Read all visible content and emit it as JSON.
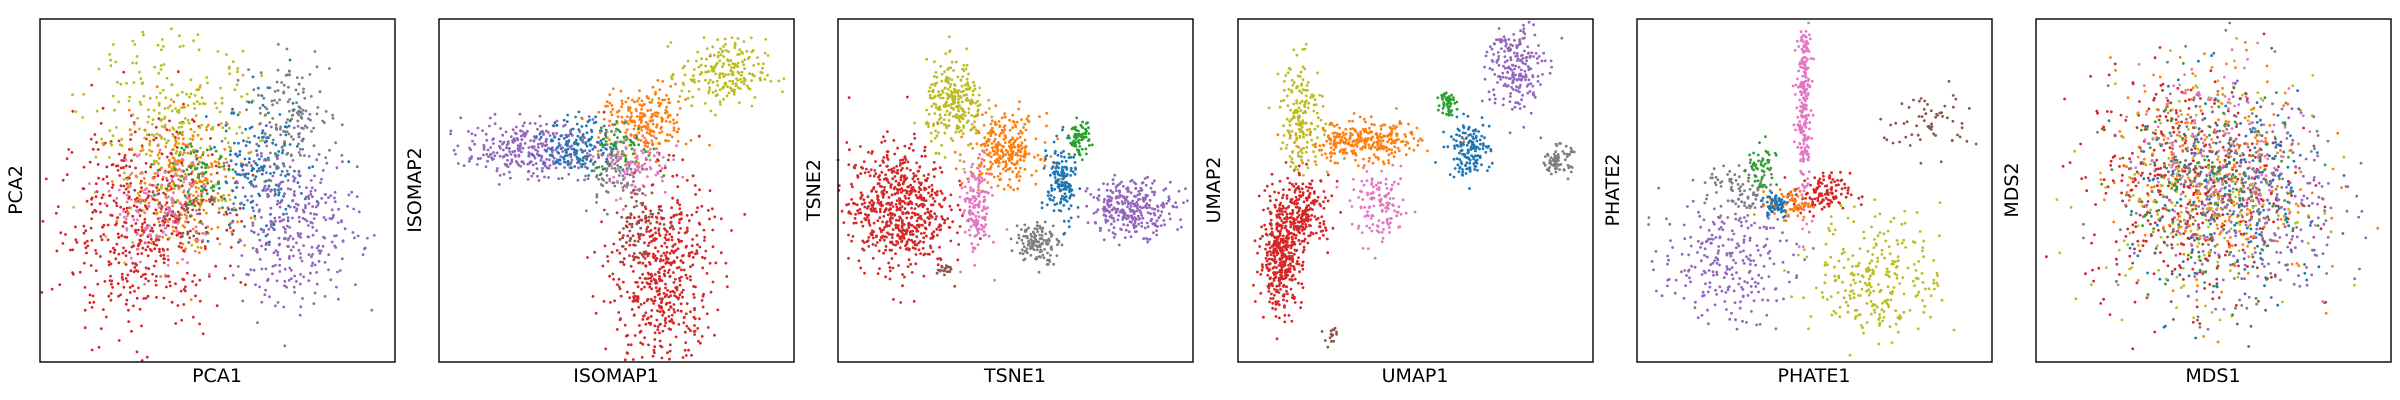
{
  "palette": {
    "blue": "#1f77b4",
    "orange": "#ff7f0e",
    "green": "#2ca02c",
    "red": "#d62728",
    "purple": "#9467bd",
    "brown": "#8c564b",
    "pink": "#e377c2",
    "gray": "#7f7f7f",
    "olive": "#bcbd22"
  },
  "chart_data": [
    {
      "type": "scatter",
      "xlabel": "PCA1",
      "ylabel": "PCA2",
      "xlim": [
        0,
        1
      ],
      "ylim": [
        0,
        1
      ],
      "grid": false,
      "ticks": false,
      "clusters": [
        {
          "color": "red",
          "x": 0.28,
          "y": 0.4,
          "sx": 0.11,
          "sy": 0.15,
          "n": 520
        },
        {
          "color": "olive",
          "x": 0.38,
          "y": 0.68,
          "sx": 0.12,
          "sy": 0.13,
          "n": 300
        },
        {
          "color": "orange",
          "x": 0.42,
          "y": 0.52,
          "sx": 0.08,
          "sy": 0.1,
          "n": 220
        },
        {
          "color": "pink",
          "x": 0.35,
          "y": 0.45,
          "sx": 0.07,
          "sy": 0.08,
          "n": 140
        },
        {
          "color": "blue",
          "x": 0.62,
          "y": 0.55,
          "sx": 0.07,
          "sy": 0.1,
          "n": 200
        },
        {
          "color": "purple",
          "x": 0.72,
          "y": 0.4,
          "sx": 0.09,
          "sy": 0.12,
          "n": 340
        },
        {
          "color": "gray",
          "x": 0.7,
          "y": 0.72,
          "sx": 0.06,
          "sy": 0.08,
          "n": 130
        },
        {
          "color": "green",
          "x": 0.45,
          "y": 0.55,
          "sx": 0.05,
          "sy": 0.05,
          "n": 70
        },
        {
          "color": "brown",
          "x": 0.4,
          "y": 0.45,
          "sx": 0.05,
          "sy": 0.05,
          "n": 50
        }
      ]
    },
    {
      "type": "scatter",
      "xlabel": "ISOMAP1",
      "ylabel": "ISOMAP2",
      "xlim": [
        0,
        1
      ],
      "ylim": [
        0,
        1
      ],
      "grid": false,
      "ticks": false,
      "clusters": [
        {
          "color": "red",
          "x": 0.63,
          "y": 0.25,
          "sx": 0.07,
          "sy": 0.15,
          "n": 560
        },
        {
          "color": "purple",
          "x": 0.25,
          "y": 0.62,
          "sx": 0.09,
          "sy": 0.04,
          "n": 300
        },
        {
          "color": "blue",
          "x": 0.4,
          "y": 0.63,
          "sx": 0.05,
          "sy": 0.04,
          "n": 160
        },
        {
          "color": "orange",
          "x": 0.58,
          "y": 0.7,
          "sx": 0.06,
          "sy": 0.05,
          "n": 220
        },
        {
          "color": "olive",
          "x": 0.8,
          "y": 0.84,
          "sx": 0.06,
          "sy": 0.05,
          "n": 210
        },
        {
          "color": "gray",
          "x": 0.5,
          "y": 0.55,
          "sx": 0.05,
          "sy": 0.05,
          "n": 90
        },
        {
          "color": "green",
          "x": 0.52,
          "y": 0.63,
          "sx": 0.04,
          "sy": 0.04,
          "n": 60
        },
        {
          "color": "pink",
          "x": 0.55,
          "y": 0.58,
          "sx": 0.05,
          "sy": 0.05,
          "n": 90
        },
        {
          "color": "brown",
          "x": 0.55,
          "y": 0.4,
          "sx": 0.04,
          "sy": 0.06,
          "n": 60
        }
      ]
    },
    {
      "type": "scatter",
      "xlabel": "TSNE1",
      "ylabel": "TSNE2",
      "xlim": [
        0,
        1
      ],
      "ylim": [
        0,
        1
      ],
      "grid": false,
      "ticks": false,
      "clusters": [
        {
          "color": "red",
          "x": 0.17,
          "y": 0.45,
          "sx": 0.07,
          "sy": 0.09,
          "n": 650
        },
        {
          "color": "olive",
          "x": 0.33,
          "y": 0.75,
          "sx": 0.04,
          "sy": 0.06,
          "n": 260
        },
        {
          "color": "orange",
          "x": 0.47,
          "y": 0.62,
          "sx": 0.05,
          "sy": 0.05,
          "n": 280
        },
        {
          "color": "pink",
          "x": 0.39,
          "y": 0.45,
          "sx": 0.02,
          "sy": 0.07,
          "n": 150
        },
        {
          "color": "blue",
          "x": 0.63,
          "y": 0.52,
          "sx": 0.02,
          "sy": 0.06,
          "n": 160
        },
        {
          "color": "green",
          "x": 0.68,
          "y": 0.65,
          "sx": 0.015,
          "sy": 0.025,
          "n": 80
        },
        {
          "color": "purple",
          "x": 0.83,
          "y": 0.45,
          "sx": 0.06,
          "sy": 0.04,
          "n": 300
        },
        {
          "color": "gray",
          "x": 0.56,
          "y": 0.35,
          "sx": 0.03,
          "sy": 0.03,
          "n": 130
        },
        {
          "color": "brown",
          "x": 0.3,
          "y": 0.27,
          "sx": 0.01,
          "sy": 0.01,
          "n": 20
        }
      ]
    },
    {
      "type": "scatter",
      "xlabel": "UMAP1",
      "ylabel": "UMAP2",
      "xlim": [
        0,
        1
      ],
      "ylim": [
        0,
        1
      ],
      "grid": false,
      "ticks": false,
      "clusters": [
        {
          "color": "red",
          "x": 0.12,
          "y": 0.3,
          "sx": 0.03,
          "sy": 0.07,
          "n": 380
        },
        {
          "color": "red",
          "x": 0.18,
          "y": 0.44,
          "sx": 0.04,
          "sy": 0.05,
          "n": 240
        },
        {
          "color": "orange",
          "x": 0.35,
          "y": 0.64,
          "sx": 0.08,
          "sy": 0.03,
          "n": 300
        },
        {
          "color": "olive",
          "x": 0.18,
          "y": 0.72,
          "sx": 0.03,
          "sy": 0.08,
          "n": 180
        },
        {
          "color": "pink",
          "x": 0.4,
          "y": 0.45,
          "sx": 0.04,
          "sy": 0.05,
          "n": 130
        },
        {
          "color": "blue",
          "x": 0.65,
          "y": 0.62,
          "sx": 0.03,
          "sy": 0.04,
          "n": 150
        },
        {
          "color": "green",
          "x": 0.59,
          "y": 0.76,
          "sx": 0.01,
          "sy": 0.02,
          "n": 50
        },
        {
          "color": "purple",
          "x": 0.78,
          "y": 0.86,
          "sx": 0.04,
          "sy": 0.07,
          "n": 220
        },
        {
          "color": "gray",
          "x": 0.9,
          "y": 0.59,
          "sx": 0.02,
          "sy": 0.02,
          "n": 80
        },
        {
          "color": "brown",
          "x": 0.26,
          "y": 0.08,
          "sx": 0.01,
          "sy": 0.015,
          "n": 15
        }
      ]
    },
    {
      "type": "scatter",
      "xlabel": "PHATE1",
      "ylabel": "PHATE2",
      "xlim": [
        0,
        1
      ],
      "ylim": [
        0,
        1
      ],
      "grid": false,
      "ticks": false,
      "clusters": [
        {
          "color": "pink",
          "x": 0.47,
          "y": 0.75,
          "sx": 0.01,
          "sy": 0.15,
          "n": 250
        },
        {
          "color": "purple",
          "x": 0.25,
          "y": 0.3,
          "sx": 0.09,
          "sy": 0.09,
          "n": 260
        },
        {
          "color": "olive",
          "x": 0.68,
          "y": 0.25,
          "sx": 0.09,
          "sy": 0.09,
          "n": 260
        },
        {
          "color": "brown",
          "x": 0.82,
          "y": 0.7,
          "sx": 0.07,
          "sy": 0.05,
          "n": 60
        },
        {
          "color": "gray",
          "x": 0.3,
          "y": 0.5,
          "sx": 0.05,
          "sy": 0.04,
          "n": 90
        },
        {
          "color": "green",
          "x": 0.35,
          "y": 0.56,
          "sx": 0.02,
          "sy": 0.04,
          "n": 50
        },
        {
          "color": "red",
          "x": 0.52,
          "y": 0.49,
          "sx": 0.04,
          "sy": 0.03,
          "n": 120
        },
        {
          "color": "orange",
          "x": 0.43,
          "y": 0.46,
          "sx": 0.03,
          "sy": 0.02,
          "n": 80
        },
        {
          "color": "blue",
          "x": 0.39,
          "y": 0.46,
          "sx": 0.02,
          "sy": 0.02,
          "n": 60
        }
      ]
    },
    {
      "type": "scatter",
      "xlabel": "MDS1",
      "ylabel": "MDS2",
      "xlim": [
        0,
        1
      ],
      "ylim": [
        0,
        1
      ],
      "grid": false,
      "ticks": false,
      "clusters": [
        {
          "color": "red",
          "x": 0.42,
          "y": 0.52,
          "sx": 0.14,
          "sy": 0.16,
          "n": 420
        },
        {
          "color": "orange",
          "x": 0.5,
          "y": 0.55,
          "sx": 0.14,
          "sy": 0.16,
          "n": 300
        },
        {
          "color": "purple",
          "x": 0.62,
          "y": 0.45,
          "sx": 0.12,
          "sy": 0.15,
          "n": 280
        },
        {
          "color": "blue",
          "x": 0.55,
          "y": 0.48,
          "sx": 0.14,
          "sy": 0.16,
          "n": 220
        },
        {
          "color": "olive",
          "x": 0.45,
          "y": 0.5,
          "sx": 0.14,
          "sy": 0.16,
          "n": 200
        },
        {
          "color": "pink",
          "x": 0.5,
          "y": 0.6,
          "sx": 0.12,
          "sy": 0.14,
          "n": 150
        },
        {
          "color": "gray",
          "x": 0.52,
          "y": 0.55,
          "sx": 0.14,
          "sy": 0.16,
          "n": 120
        },
        {
          "color": "green",
          "x": 0.48,
          "y": 0.5,
          "sx": 0.13,
          "sy": 0.15,
          "n": 120
        },
        {
          "color": "brown",
          "x": 0.5,
          "y": 0.45,
          "sx": 0.13,
          "sy": 0.15,
          "n": 100
        }
      ]
    }
  ]
}
